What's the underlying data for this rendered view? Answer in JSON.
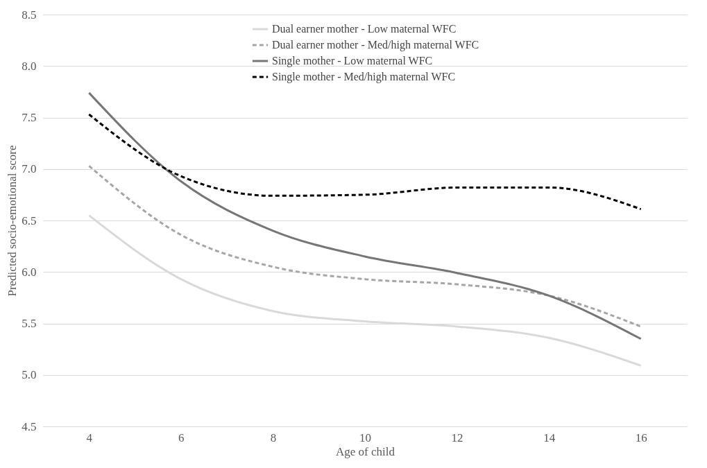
{
  "chart_data": {
    "type": "line",
    "xlabel": "Age of child",
    "ylabel": "Predicted socio-emotional score",
    "categories": [
      "4",
      "6",
      "8",
      "10",
      "12",
      "14",
      "16"
    ],
    "ylim": [
      4.5,
      8.5
    ],
    "yticks": [
      4.5,
      {
        "value": 5,
        "label": "5.0"
      },
      5.5,
      {
        "value": 6,
        "label": "6.0"
      },
      6.5,
      {
        "value": 7,
        "label": "7.0"
      },
      7.5,
      {
        "value": 8,
        "label": "8.0"
      },
      8.5
    ],
    "grid": "y",
    "legend": "top",
    "marker": "none",
    "series": [
      {
        "name": "Dual earner mother -  Low maternal WFC",
        "color": "#d9d9d9",
        "line_style": "solid",
        "values": [
          6.55,
          5.93,
          5.62,
          5.52,
          5.47,
          5.36,
          5.09
        ]
      },
      {
        "name": "Dual earner mother -  Med/high maternal WFC",
        "color": "#a6a6a6",
        "line_style": "dashed",
        "values": [
          7.03,
          6.36,
          6.05,
          5.93,
          5.88,
          5.77,
          5.47
        ]
      },
      {
        "name": "Single mother -  Low maternal WFC",
        "color": "#767676",
        "line_style": "solid",
        "values": [
          7.74,
          6.88,
          6.4,
          6.15,
          5.99,
          5.77,
          5.35
        ]
      },
      {
        "name": "Single mother -  Med/high maternal WFC",
        "color": "#000000",
        "line_style": "dashed",
        "values": [
          7.53,
          6.93,
          6.74,
          6.75,
          6.82,
          6.82,
          6.61
        ]
      }
    ]
  }
}
